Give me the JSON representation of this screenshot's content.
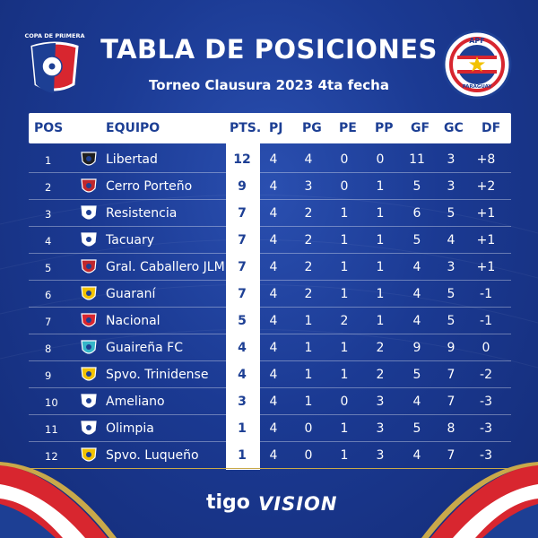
{
  "header_title": "TABLA DE POSICIONES",
  "subtitle": "Torneo Clausura 2023 4ta fecha",
  "left_logo": {
    "text": "COPA DE PRIMERA"
  },
  "right_logo": {
    "top_text": "APF",
    "bottom_text": "PARAGUAY"
  },
  "columns": {
    "pos": "POS",
    "equipo": "EQUIPO",
    "pts": "PTS.",
    "pj": "PJ",
    "pg": "PG",
    "pe": "PE",
    "pp": "PP",
    "gf": "GF",
    "gc": "GC",
    "df": "DF"
  },
  "rows": [
    {
      "pos": "1",
      "team": "Libertad",
      "pts": "12",
      "pj": "4",
      "pg": "4",
      "pe": "0",
      "pp": "0",
      "gf": "11",
      "gc": "3",
      "df": "+8"
    },
    {
      "pos": "2",
      "team": "Cerro Porteño",
      "pts": "9",
      "pj": "4",
      "pg": "3",
      "pe": "0",
      "pp": "1",
      "gf": "5",
      "gc": "3",
      "df": "+2"
    },
    {
      "pos": "3",
      "team": "Resistencia",
      "pts": "7",
      "pj": "4",
      "pg": "2",
      "pe": "1",
      "pp": "1",
      "gf": "6",
      "gc": "5",
      "df": "+1"
    },
    {
      "pos": "4",
      "team": "Tacuary",
      "pts": "7",
      "pj": "4",
      "pg": "2",
      "pe": "1",
      "pp": "1",
      "gf": "5",
      "gc": "4",
      "df": "+1"
    },
    {
      "pos": "5",
      "team": "Gral. Caballero JLM",
      "pts": "7",
      "pj": "4",
      "pg": "2",
      "pe": "1",
      "pp": "1",
      "gf": "4",
      "gc": "3",
      "df": "+1"
    },
    {
      "pos": "6",
      "team": "Guaraní",
      "pts": "7",
      "pj": "4",
      "pg": "2",
      "pe": "1",
      "pp": "1",
      "gf": "4",
      "gc": "5",
      "df": "-1"
    },
    {
      "pos": "7",
      "team": "Nacional",
      "pts": "5",
      "pj": "4",
      "pg": "1",
      "pe": "2",
      "pp": "1",
      "gf": "4",
      "gc": "5",
      "df": "-1"
    },
    {
      "pos": "8",
      "team": "Guaireña FC",
      "pts": "4",
      "pj": "4",
      "pg": "1",
      "pe": "1",
      "pp": "2",
      "gf": "9",
      "gc": "9",
      "df": "0"
    },
    {
      "pos": "9",
      "team": "Spvo. Trinidense",
      "pts": "4",
      "pj": "4",
      "pg": "1",
      "pe": "1",
      "pp": "2",
      "gf": "5",
      "gc": "7",
      "df": "-2"
    },
    {
      "pos": "10",
      "team": "Ameliano",
      "pts": "3",
      "pj": "4",
      "pg": "1",
      "pe": "0",
      "pp": "3",
      "gf": "4",
      "gc": "7",
      "df": "-3"
    },
    {
      "pos": "11",
      "team": "Olimpia",
      "pts": "1",
      "pj": "4",
      "pg": "0",
      "pe": "1",
      "pp": "3",
      "gf": "5",
      "gc": "8",
      "df": "-3"
    },
    {
      "pos": "12",
      "team": "Spvo. Luqueño",
      "pts": "1",
      "pj": "4",
      "pg": "0",
      "pe": "1",
      "pp": "3",
      "gf": "4",
      "gc": "7",
      "df": "-3"
    }
  ],
  "team_icons": [
    "libertad-crest-icon",
    "cerro-porteno-crest-icon",
    "resistencia-crest-icon",
    "tacuary-crest-icon",
    "gral-caballero-crest-icon",
    "guarani-crest-icon",
    "nacional-crest-icon",
    "guairena-crest-icon",
    "trinidense-crest-icon",
    "ameliano-crest-icon",
    "olimpia-crest-icon",
    "luqueno-crest-icon"
  ],
  "sponsors": {
    "tigo": "tigo",
    "vision": "VISION"
  },
  "colors": {
    "background": "#1b3a93",
    "header_text": "#1d3f94",
    "accent_red": "#d8262f",
    "gold": "#c9a94a"
  }
}
